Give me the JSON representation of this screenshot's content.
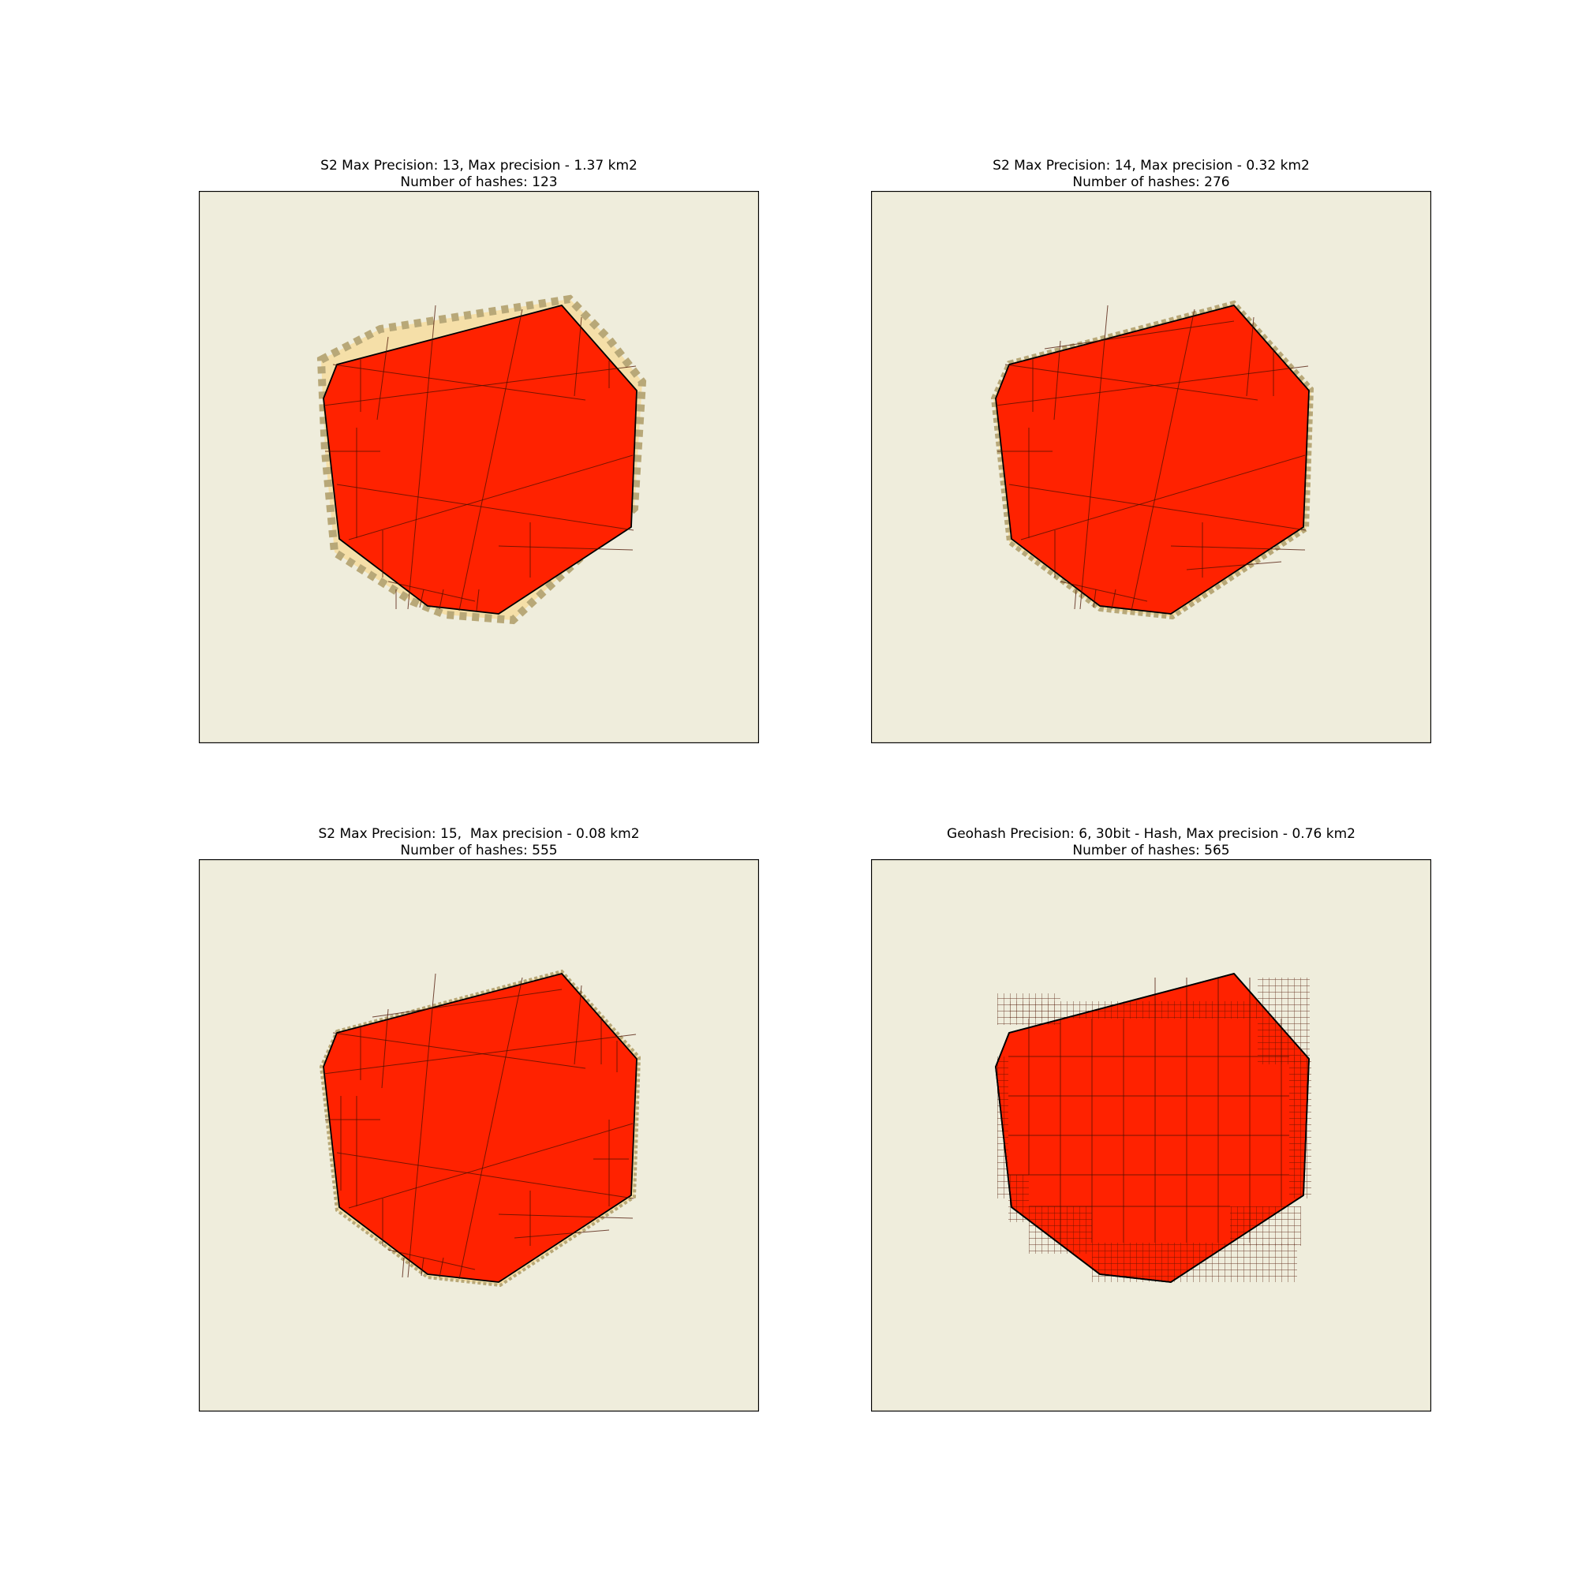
{
  "colors": {
    "map_background": "#efeddc",
    "polygon_fill": "#ff2200",
    "hash_cell_fill": "#f5dfa8",
    "hash_cell_stroke": "#b8a878",
    "cell_line": "#4a1000",
    "outline": "#000000"
  },
  "panels": [
    {
      "title": "S2 Max Precision: 13, Max precision - 1.37 km2",
      "subtitle": "Number of hashes: 123"
    },
    {
      "title": "S2 Max Precision: 14, Max precision - 0.32 km2",
      "subtitle": "Number of hashes: 276"
    },
    {
      "title": "S2 Max Precision: 15,  Max precision - 0.08 km2",
      "subtitle": "Number of hashes: 555"
    },
    {
      "title": "Geohash Precision: 6, 30bit - Hash, Max precision - 0.76 km2",
      "subtitle": "Number of hashes: 565"
    }
  ]
}
